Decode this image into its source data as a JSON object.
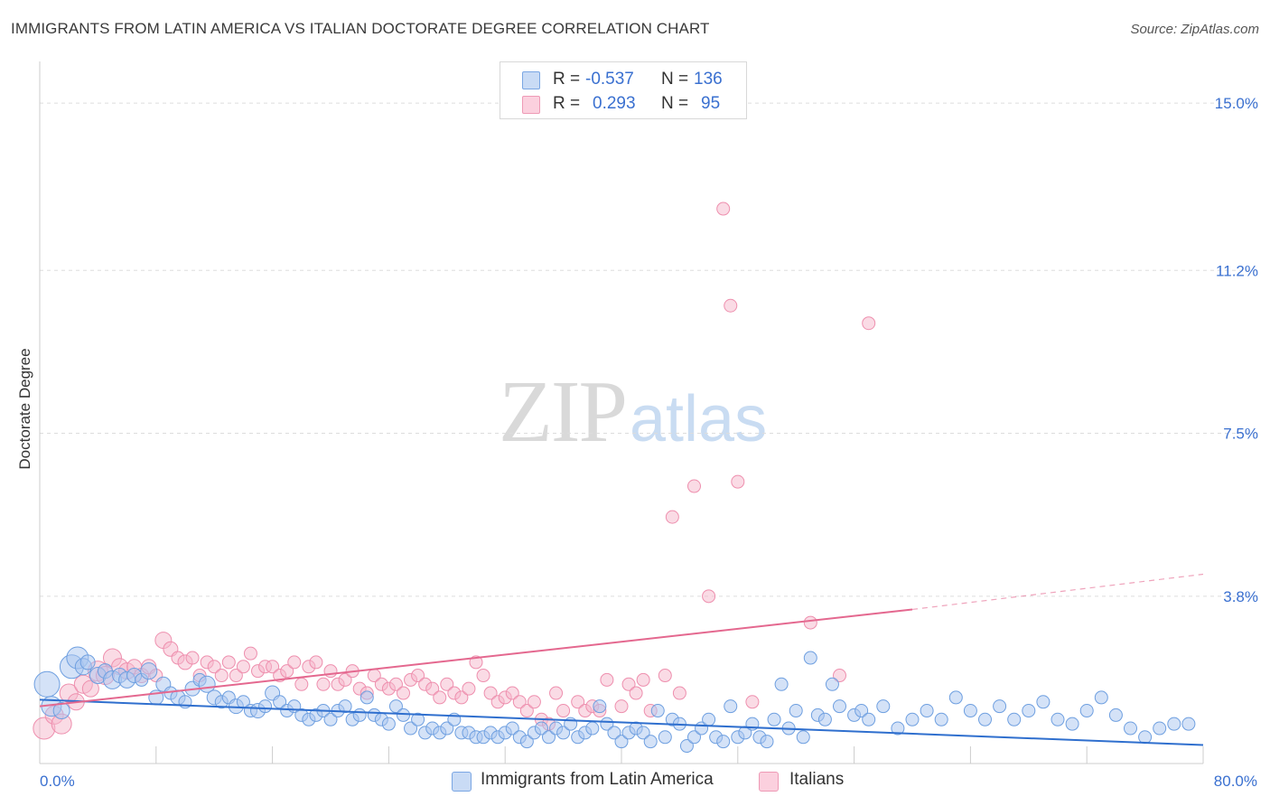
{
  "header": {
    "title": "IMMIGRANTS FROM LATIN AMERICA VS ITALIAN DOCTORATE DEGREE CORRELATION CHART",
    "source": "Source: ZipAtlas.com"
  },
  "watermark": {
    "zip": "ZIP",
    "atlas": "atlas"
  },
  "stats_legend": {
    "rows": [
      {
        "r_label": "R =",
        "r_value": "-0.537",
        "n_label": "N =",
        "n_value": "136",
        "color": "#a9c6ef"
      },
      {
        "r_label": "R =",
        "r_value": "0.293",
        "n_label": "N =",
        "n_value": "95",
        "color": "#f6b8cb"
      }
    ]
  },
  "bottom_legend": {
    "items": [
      {
        "label": "Immigrants from Latin America",
        "color": "#a9c6ef"
      },
      {
        "label": "Italians",
        "color": "#f6b8cb"
      }
    ]
  },
  "colors": {
    "blue_fill": "#a9c6ef",
    "blue_stroke": "#6e9fe0",
    "blue_line": "#2f6fce",
    "pink_fill": "#f6b8cb",
    "pink_stroke": "#ee8fae",
    "pink_line": "#e4688f",
    "tick_label": "#3a70d0",
    "grid": "#dddddd"
  },
  "chart_data": {
    "type": "scatter",
    "title": "IMMIGRANTS FROM LATIN AMERICA VS ITALIAN DOCTORATE DEGREE CORRELATION CHART",
    "xlabel": "",
    "ylabel": "Doctorate Degree",
    "xlim": [
      0,
      80
    ],
    "ylim": [
      0,
      15.7
    ],
    "x_tick_labels": [
      "0.0%",
      "80.0%"
    ],
    "y_ticks": [
      3.8,
      7.5,
      11.2,
      15.0
    ],
    "y_tick_labels": [
      "3.8%",
      "7.5%",
      "11.2%",
      "15.0%"
    ],
    "grid": true,
    "legend_position": "bottom",
    "series": [
      {
        "name": "Immigrants from Latin America",
        "r": -0.537,
        "n": 136,
        "trend": {
          "x": [
            0,
            80
          ],
          "y": [
            1.45,
            0.42
          ],
          "dashed_from": null
        },
        "points": [
          [
            0.5,
            1.8,
            14
          ],
          [
            0.8,
            1.3,
            11
          ],
          [
            1.5,
            1.2,
            9
          ],
          [
            2.2,
            2.2,
            13
          ],
          [
            2.6,
            2.4,
            12
          ],
          [
            3,
            2.2,
            9
          ],
          [
            3.3,
            2.3,
            8
          ],
          [
            4,
            2.0,
            9
          ],
          [
            4.5,
            2.1,
            8
          ],
          [
            5,
            1.9,
            10
          ],
          [
            5.5,
            2.0,
            8
          ],
          [
            6,
            1.9,
            9
          ],
          [
            6.5,
            2.0,
            8
          ],
          [
            7,
            1.9,
            7
          ],
          [
            7.5,
            2.1,
            9
          ],
          [
            8,
            1.5,
            8
          ],
          [
            8.5,
            1.8,
            8
          ],
          [
            9,
            1.6,
            7
          ],
          [
            9.5,
            1.5,
            8
          ],
          [
            10,
            1.4,
            7
          ],
          [
            10.5,
            1.7,
            8
          ],
          [
            11,
            1.9,
            7
          ],
          [
            11.5,
            1.8,
            9
          ],
          [
            12,
            1.5,
            8
          ],
          [
            12.5,
            1.4,
            7
          ],
          [
            13,
            1.5,
            7
          ],
          [
            13.5,
            1.3,
            8
          ],
          [
            14,
            1.4,
            7
          ],
          [
            14.5,
            1.2,
            7
          ],
          [
            15,
            1.2,
            8
          ],
          [
            15.5,
            1.3,
            7
          ],
          [
            16,
            1.6,
            8
          ],
          [
            16.5,
            1.4,
            7
          ],
          [
            17,
            1.2,
            7
          ],
          [
            17.5,
            1.3,
            7
          ],
          [
            18,
            1.1,
            7
          ],
          [
            18.5,
            1.0,
            7
          ],
          [
            19,
            1.1,
            7
          ],
          [
            19.5,
            1.2,
            7
          ],
          [
            20,
            1.0,
            7
          ],
          [
            20.5,
            1.2,
            7
          ],
          [
            21,
            1.3,
            7
          ],
          [
            21.5,
            1.0,
            7
          ],
          [
            22,
            1.1,
            7
          ],
          [
            22.5,
            1.5,
            7
          ],
          [
            23,
            1.1,
            7
          ],
          [
            23.5,
            1.0,
            7
          ],
          [
            24,
            0.9,
            7
          ],
          [
            24.5,
            1.3,
            7
          ],
          [
            25,
            1.1,
            7
          ],
          [
            25.5,
            0.8,
            7
          ],
          [
            26,
            1.0,
            7
          ],
          [
            26.5,
            0.7,
            7
          ],
          [
            27,
            0.8,
            7
          ],
          [
            27.5,
            0.7,
            7
          ],
          [
            28,
            0.8,
            7
          ],
          [
            28.5,
            1.0,
            7
          ],
          [
            29,
            0.7,
            7
          ],
          [
            29.5,
            0.7,
            7
          ],
          [
            30,
            0.6,
            7
          ],
          [
            30.5,
            0.6,
            7
          ],
          [
            31,
            0.7,
            7
          ],
          [
            31.5,
            0.6,
            7
          ],
          [
            32,
            0.7,
            7
          ],
          [
            32.5,
            0.8,
            7
          ],
          [
            33,
            0.6,
            7
          ],
          [
            33.5,
            0.5,
            7
          ],
          [
            34,
            0.7,
            7
          ],
          [
            34.5,
            0.8,
            7
          ],
          [
            35,
            0.6,
            7
          ],
          [
            35.5,
            0.8,
            7
          ],
          [
            36,
            0.7,
            7
          ],
          [
            36.5,
            0.9,
            7
          ],
          [
            37,
            0.6,
            7
          ],
          [
            37.5,
            0.7,
            7
          ],
          [
            38,
            0.8,
            7
          ],
          [
            38.5,
            1.3,
            7
          ],
          [
            39,
            0.9,
            7
          ],
          [
            39.5,
            0.7,
            7
          ],
          [
            40,
            0.5,
            7
          ],
          [
            40.5,
            0.7,
            7
          ],
          [
            41,
            0.8,
            7
          ],
          [
            41.5,
            0.7,
            7
          ],
          [
            42,
            0.5,
            7
          ],
          [
            42.5,
            1.2,
            7
          ],
          [
            43,
            0.6,
            7
          ],
          [
            43.5,
            1.0,
            7
          ],
          [
            44,
            0.9,
            7
          ],
          [
            44.5,
            0.4,
            7
          ],
          [
            45,
            0.6,
            7
          ],
          [
            45.5,
            0.8,
            7
          ],
          [
            46,
            1.0,
            7
          ],
          [
            46.5,
            0.6,
            7
          ],
          [
            47,
            0.5,
            7
          ],
          [
            47.5,
            1.3,
            7
          ],
          [
            48,
            0.6,
            7
          ],
          [
            48.5,
            0.7,
            7
          ],
          [
            49,
            0.9,
            7
          ],
          [
            49.5,
            0.6,
            7
          ],
          [
            50,
            0.5,
            7
          ],
          [
            50.5,
            1.0,
            7
          ],
          [
            51,
            1.8,
            7
          ],
          [
            51.5,
            0.8,
            7
          ],
          [
            52,
            1.2,
            7
          ],
          [
            52.5,
            0.6,
            7
          ],
          [
            53,
            2.4,
            7
          ],
          [
            53.5,
            1.1,
            7
          ],
          [
            54,
            1.0,
            7
          ],
          [
            54.5,
            1.8,
            7
          ],
          [
            55,
            1.3,
            7
          ],
          [
            56,
            1.1,
            7
          ],
          [
            56.5,
            1.2,
            7
          ],
          [
            57,
            1.0,
            7
          ],
          [
            58,
            1.3,
            7
          ],
          [
            59,
            0.8,
            7
          ],
          [
            60,
            1.0,
            7
          ],
          [
            61,
            1.2,
            7
          ],
          [
            62,
            1.0,
            7
          ],
          [
            63,
            1.5,
            7
          ],
          [
            64,
            1.2,
            7
          ],
          [
            65,
            1.0,
            7
          ],
          [
            66,
            1.3,
            7
          ],
          [
            67,
            1.0,
            7
          ],
          [
            68,
            1.2,
            7
          ],
          [
            69,
            1.4,
            7
          ],
          [
            70,
            1.0,
            7
          ],
          [
            71,
            0.9,
            7
          ],
          [
            72,
            1.2,
            7
          ],
          [
            73,
            1.5,
            7
          ],
          [
            74,
            1.1,
            7
          ],
          [
            75,
            0.8,
            7
          ],
          [
            76,
            0.6,
            7
          ],
          [
            77,
            0.8,
            7
          ],
          [
            78,
            0.9,
            7
          ],
          [
            79,
            0.9,
            7
          ]
        ]
      },
      {
        "name": "Italians",
        "r": 0.293,
        "n": 95,
        "trend": {
          "x": [
            0,
            60,
            80
          ],
          "y": [
            1.3,
            3.5,
            4.3
          ],
          "dashed_from": 60
        },
        "points": [
          [
            0.3,
            0.8,
            12
          ],
          [
            1,
            1.1,
            10
          ],
          [
            1.5,
            0.9,
            11
          ],
          [
            2,
            1.6,
            10
          ],
          [
            2.5,
            1.4,
            9
          ],
          [
            3,
            1.8,
            10
          ],
          [
            3.5,
            1.7,
            9
          ],
          [
            4,
            2.1,
            11
          ],
          [
            4.5,
            2.0,
            10
          ],
          [
            5,
            2.4,
            10
          ],
          [
            5.5,
            2.2,
            9
          ],
          [
            6,
            2.1,
            9
          ],
          [
            6.5,
            2.2,
            8
          ],
          [
            7,
            2.0,
            8
          ],
          [
            7.5,
            2.2,
            8
          ],
          [
            8,
            2.0,
            7
          ],
          [
            8.5,
            2.8,
            9
          ],
          [
            9,
            2.6,
            8
          ],
          [
            9.5,
            2.4,
            7
          ],
          [
            10,
            2.3,
            8
          ],
          [
            10.5,
            2.4,
            7
          ],
          [
            11,
            2.0,
            7
          ],
          [
            11.5,
            2.3,
            7
          ],
          [
            12,
            2.2,
            7
          ],
          [
            12.5,
            2.0,
            7
          ],
          [
            13,
            2.3,
            7
          ],
          [
            13.5,
            2.0,
            7
          ],
          [
            14,
            2.2,
            7
          ],
          [
            14.5,
            2.5,
            7
          ],
          [
            15,
            2.1,
            7
          ],
          [
            15.5,
            2.2,
            7
          ],
          [
            16,
            2.2,
            7
          ],
          [
            16.5,
            2.0,
            7
          ],
          [
            17,
            2.1,
            7
          ],
          [
            17.5,
            2.3,
            7
          ],
          [
            18,
            1.8,
            7
          ],
          [
            18.5,
            2.2,
            7
          ],
          [
            19,
            2.3,
            7
          ],
          [
            19.5,
            1.8,
            7
          ],
          [
            20,
            2.1,
            7
          ],
          [
            20.5,
            1.8,
            7
          ],
          [
            21,
            1.9,
            7
          ],
          [
            21.5,
            2.1,
            7
          ],
          [
            22,
            1.7,
            7
          ],
          [
            22.5,
            1.6,
            7
          ],
          [
            23,
            2.0,
            7
          ],
          [
            23.5,
            1.8,
            7
          ],
          [
            24,
            1.7,
            7
          ],
          [
            24.5,
            1.8,
            7
          ],
          [
            25,
            1.6,
            7
          ],
          [
            25.5,
            1.9,
            7
          ],
          [
            26,
            2.0,
            7
          ],
          [
            26.5,
            1.8,
            7
          ],
          [
            27,
            1.7,
            7
          ],
          [
            27.5,
            1.5,
            7
          ],
          [
            28,
            1.8,
            7
          ],
          [
            28.5,
            1.6,
            7
          ],
          [
            29,
            1.5,
            7
          ],
          [
            29.5,
            1.7,
            7
          ],
          [
            30,
            2.3,
            7
          ],
          [
            30.5,
            2.0,
            7
          ],
          [
            31,
            1.6,
            7
          ],
          [
            31.5,
            1.4,
            7
          ],
          [
            32,
            1.5,
            7
          ],
          [
            32.5,
            1.6,
            7
          ],
          [
            33,
            1.4,
            7
          ],
          [
            33.5,
            1.2,
            7
          ],
          [
            34,
            1.4,
            7
          ],
          [
            34.5,
            1.0,
            7
          ],
          [
            35,
            0.9,
            7
          ],
          [
            35.5,
            1.6,
            7
          ],
          [
            36,
            1.2,
            7
          ],
          [
            37,
            1.4,
            7
          ],
          [
            37.5,
            1.2,
            7
          ],
          [
            38,
            1.3,
            7
          ],
          [
            38.5,
            1.2,
            7
          ],
          [
            39,
            1.9,
            7
          ],
          [
            40,
            1.3,
            7
          ],
          [
            40.5,
            1.8,
            7
          ],
          [
            41,
            1.6,
            7
          ],
          [
            41.5,
            1.9,
            7
          ],
          [
            42,
            1.2,
            7
          ],
          [
            43,
            2.0,
            7
          ],
          [
            43.5,
            5.6,
            7
          ],
          [
            44,
            1.6,
            7
          ],
          [
            45,
            6.3,
            7
          ],
          [
            46,
            3.8,
            7
          ],
          [
            47,
            12.6,
            7
          ],
          [
            47.5,
            10.4,
            7
          ],
          [
            48,
            6.4,
            7
          ],
          [
            49,
            1.4,
            7
          ],
          [
            53,
            3.2,
            7
          ],
          [
            55,
            2.0,
            7
          ],
          [
            57,
            10.0,
            7
          ]
        ]
      }
    ]
  }
}
